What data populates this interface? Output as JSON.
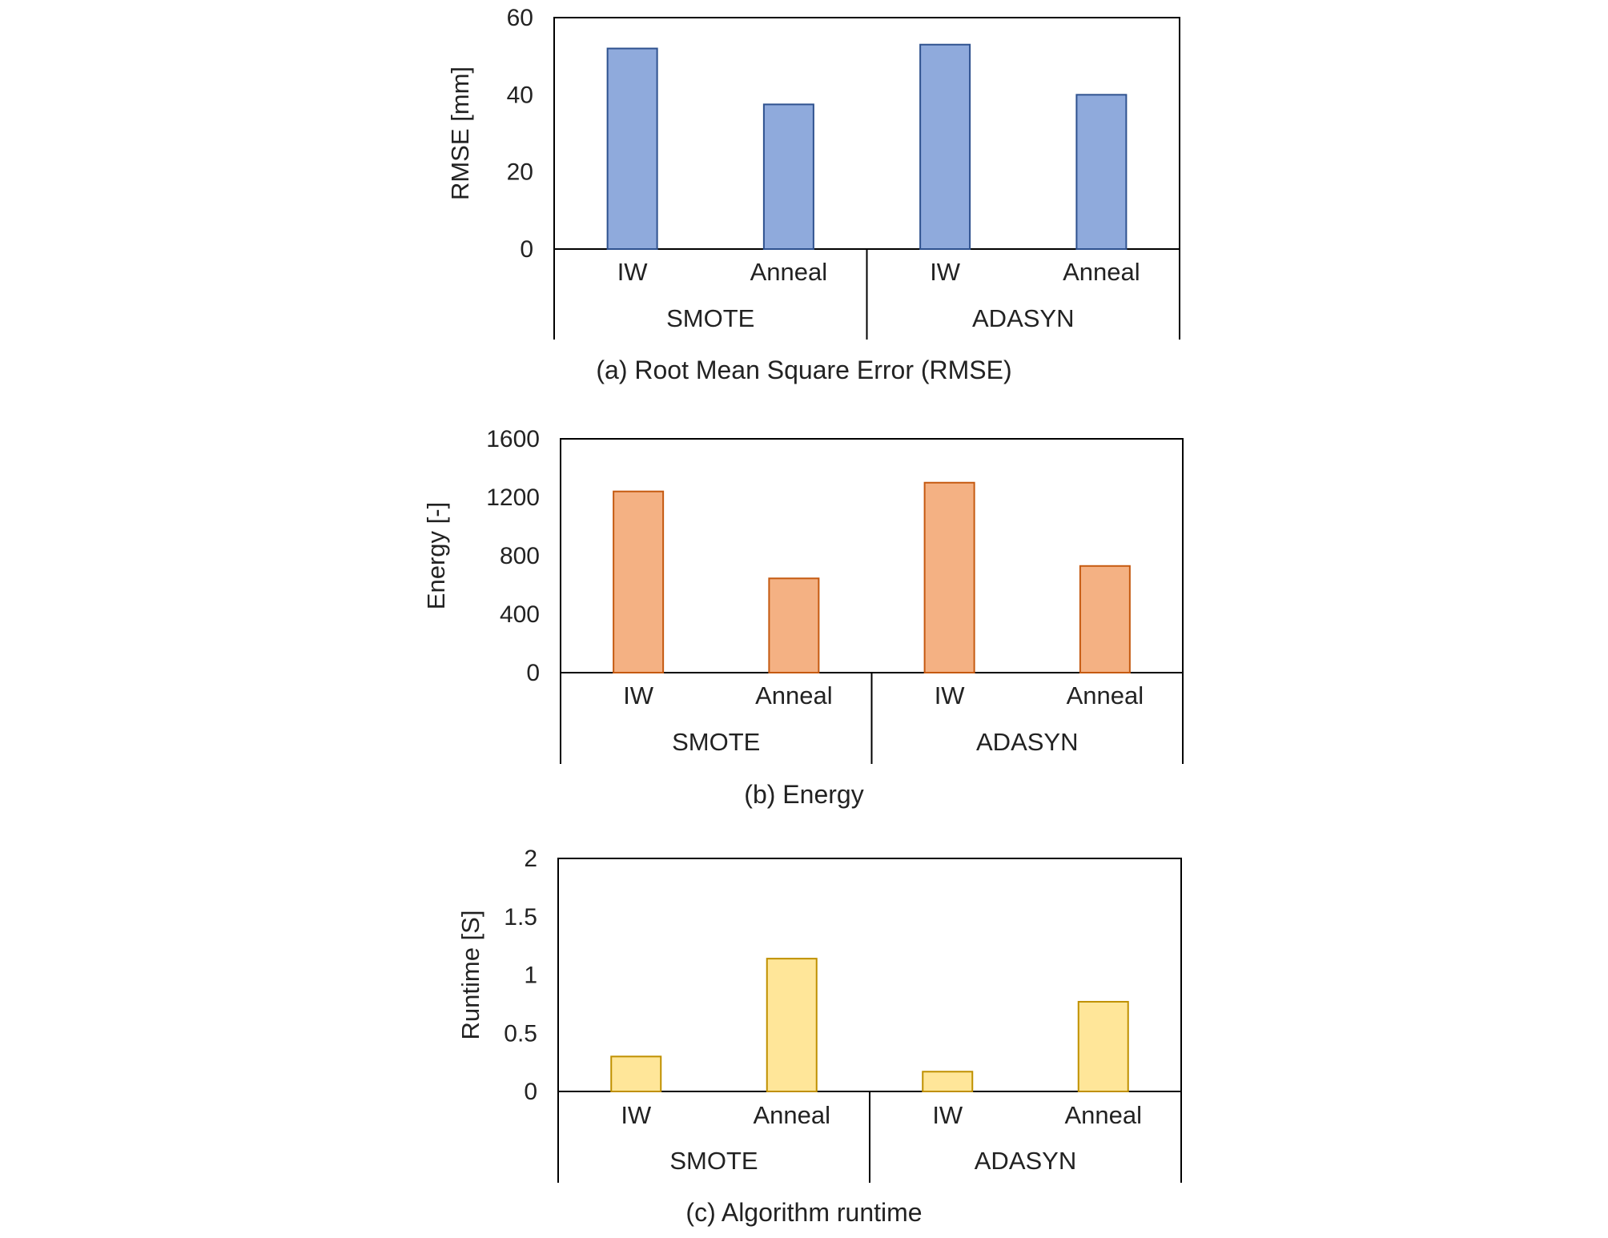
{
  "chart_data": [
    {
      "type": "bar",
      "caption": "(a)  Root  Mean  Square  Error  (RMSE)",
      "xlabel": "",
      "ylabel": "RMSE [mm]",
      "ylim": [
        0,
        60
      ],
      "yticks": [
        "0",
        "20",
        "40",
        "60"
      ],
      "categories": [
        "IW",
        "Anneal",
        "IW",
        "Anneal"
      ],
      "groups": [
        "SMOTE",
        "ADASYN"
      ],
      "values": [
        52,
        37.5,
        53,
        40
      ],
      "color": "#8faadc",
      "edge": "#2f528f"
    },
    {
      "type": "bar",
      "caption": "(b)  Energy",
      "xlabel": "",
      "ylabel": "Energy [-]",
      "ylim": [
        0,
        1600
      ],
      "yticks": [
        "0",
        "400",
        "800",
        "1200",
        "1600"
      ],
      "categories": [
        "IW",
        "Anneal",
        "IW",
        "Anneal"
      ],
      "groups": [
        "SMOTE",
        "ADASYN"
      ],
      "values": [
        1240,
        645,
        1300,
        730
      ],
      "color": "#f4b183",
      "edge": "#c55a11"
    },
    {
      "type": "bar",
      "caption": "(c)  Algorithm  runtime",
      "xlabel": "",
      "ylabel": "Runtime [S]",
      "ylim": [
        0,
        2
      ],
      "yticks": [
        "0",
        "0.5",
        "1",
        "1.5",
        "2"
      ],
      "categories": [
        "IW",
        "Anneal",
        "IW",
        "Anneal"
      ],
      "groups": [
        "SMOTE",
        "ADASYN"
      ],
      "values": [
        0.3,
        1.14,
        0.17,
        0.77
      ],
      "color": "#ffe699",
      "edge": "#bf9000"
    }
  ]
}
